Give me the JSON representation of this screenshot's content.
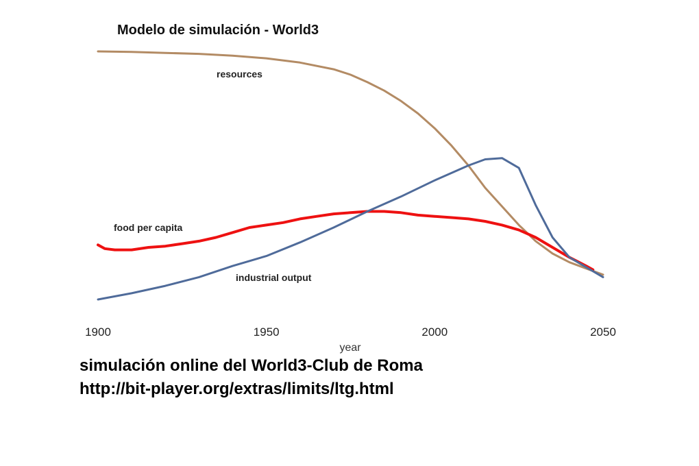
{
  "chart_data": {
    "type": "line",
    "title": "Modelo de simulación - World3",
    "xlabel": "year",
    "ylabel": "",
    "xlim": [
      1900,
      2050
    ],
    "ylim": [
      0,
      1
    ],
    "x_ticks": [
      "1900",
      "1950",
      "2000",
      "2050"
    ],
    "grid": false,
    "legend": "none",
    "series": [
      {
        "name": "resources",
        "color": "#b38b64",
        "x": [
          1900,
          1910,
          1920,
          1930,
          1940,
          1950,
          1960,
          1970,
          1975,
          1980,
          1985,
          1990,
          1995,
          2000,
          2005,
          2010,
          2015,
          2020,
          2025,
          2030,
          2035,
          2040,
          2045,
          2050
        ],
        "values": [
          1.0,
          0.998,
          0.994,
          0.99,
          0.983,
          0.972,
          0.955,
          0.928,
          0.906,
          0.876,
          0.842,
          0.8,
          0.75,
          0.69,
          0.62,
          0.54,
          0.45,
          0.375,
          0.3,
          0.235,
          0.185,
          0.15,
          0.125,
          0.1
        ]
      },
      {
        "name": "food per capita",
        "color": "#ee1111",
        "x": [
          1900,
          1902,
          1905,
          1910,
          1915,
          1920,
          1925,
          1930,
          1935,
          1940,
          1945,
          1950,
          1955,
          1960,
          1965,
          1970,
          1975,
          1980,
          1985,
          1990,
          1995,
          2000,
          2005,
          2010,
          2015,
          2020,
          2025,
          2030,
          2035,
          2040,
          2045,
          2047
        ],
        "values": [
          0.22,
          0.205,
          0.2,
          0.2,
          0.21,
          0.215,
          0.225,
          0.235,
          0.25,
          0.27,
          0.29,
          0.3,
          0.31,
          0.325,
          0.335,
          0.345,
          0.35,
          0.355,
          0.355,
          0.35,
          0.34,
          0.335,
          0.33,
          0.325,
          0.315,
          0.3,
          0.28,
          0.25,
          0.21,
          0.17,
          0.135,
          0.12
        ]
      },
      {
        "name": "industrial output",
        "color": "#4f6b9a",
        "x": [
          1900,
          1910,
          1920,
          1930,
          1940,
          1950,
          1960,
          1970,
          1980,
          1990,
          2000,
          2010,
          2015,
          2020,
          2025,
          2030,
          2035,
          2040,
          2045,
          2050
        ],
        "values": [
          0.0,
          0.025,
          0.055,
          0.09,
          0.135,
          0.175,
          0.23,
          0.29,
          0.355,
          0.415,
          0.48,
          0.54,
          0.565,
          0.57,
          0.53,
          0.38,
          0.25,
          0.17,
          0.13,
          0.09
        ]
      }
    ]
  },
  "caption": {
    "line1": "simulación online del World3-Club de Roma",
    "line2": "http://bit-player.org/extras/limits/ltg.html"
  }
}
